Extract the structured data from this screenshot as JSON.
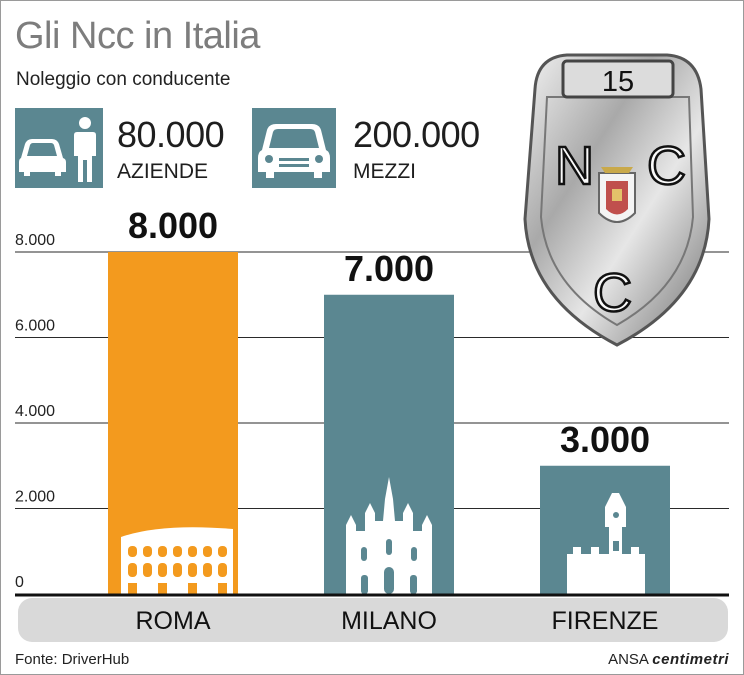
{
  "header": {
    "title": "Gli Ncc in Italia",
    "subtitle": "Noleggio con conducente"
  },
  "stats": [
    {
      "value": "80.000",
      "label": "AZIENDE",
      "icon": "car-person-icon"
    },
    {
      "value": "200.000",
      "label": "MEZZI",
      "icon": "car-front-icon"
    }
  ],
  "badge": {
    "number": "15",
    "letters": [
      "N",
      "C",
      "C"
    ]
  },
  "chart_data": {
    "type": "bar",
    "categories": [
      "ROMA",
      "MILANO",
      "FIRENZE"
    ],
    "values": [
      8000,
      7000,
      3000
    ],
    "value_labels": [
      "8.000",
      "7.000",
      "3.000"
    ],
    "ylim": [
      0,
      8000
    ],
    "yticks": [
      0,
      2000,
      4000,
      6000,
      8000
    ],
    "ytick_labels": [
      "0",
      "2.000",
      "4.000",
      "6.000",
      "8.000"
    ],
    "colors": [
      "#f39a1e",
      "#5b8791",
      "#5b8791"
    ],
    "grid": true
  },
  "footer": {
    "source": "Fonte: DriverHub",
    "agency": "ANSA",
    "brand": "centimetri"
  },
  "colors": {
    "accent": "#5b8791",
    "highlight": "#f39a1e",
    "axis_band": "#d9d9d9"
  }
}
